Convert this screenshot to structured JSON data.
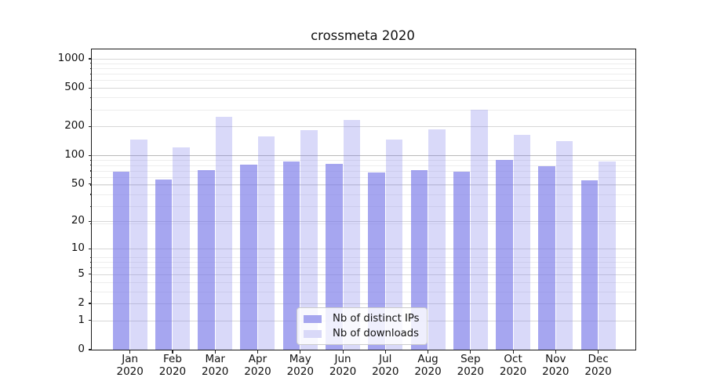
{
  "title": "crossmeta 2020",
  "chart_data": {
    "type": "bar",
    "title": "crossmeta 2020",
    "categories": [
      "Jan",
      "Feb",
      "Mar",
      "Apr",
      "May",
      "Jun",
      "Jul",
      "Aug",
      "Sep",
      "Oct",
      "Nov",
      "Dec"
    ],
    "xtick_year": "2020",
    "series": [
      {
        "name": "Nb of distinct IPs",
        "fill": "rgba(120,120,232,0.66)",
        "swatch": "#a6a6ef",
        "values": [
          68,
          56,
          70,
          80,
          86,
          81,
          66,
          70,
          68,
          89,
          77,
          55
        ]
      },
      {
        "name": "Nb of downloads",
        "fill": "rgba(120,120,232,0.28)",
        "swatch": "#d9d9f8",
        "values": [
          145,
          122,
          250,
          158,
          183,
          232,
          145,
          187,
          298,
          162,
          141,
          87
        ]
      }
    ],
    "yscale": "log1p",
    "yticks": [
      0,
      1,
      2,
      5,
      10,
      20,
      50,
      100,
      200,
      500,
      1000
    ],
    "ylim": [
      0,
      1250
    ],
    "grid": true,
    "legend_position": "lower-center",
    "colors": {
      "grid_major": "#b9b9b9",
      "grid_tick": "#d7d7d7",
      "grid_minor": "#ededed",
      "spine": "#1a1a1a",
      "text": "#111111"
    }
  }
}
